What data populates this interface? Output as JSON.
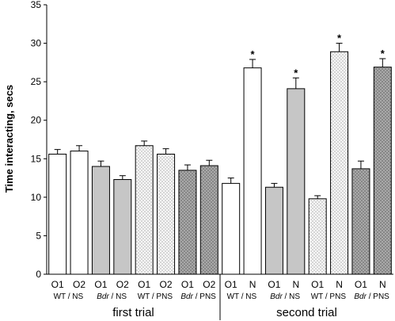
{
  "chart_data": {
    "type": "bar",
    "ylabel": "Time interacting, secs",
    "ylim": [
      0,
      35
    ],
    "yticks": [
      0,
      5,
      10,
      15,
      20,
      25,
      30,
      35
    ],
    "grid": false,
    "fills": {
      "white": "#ffffff",
      "gray": "#c6c6c6",
      "dotted_light": "#f7f7f7",
      "dotted_dark": "#a9a9a9"
    },
    "groups": [
      {
        "label": "first trial",
        "bars": [
          {
            "top": "O1",
            "bottom": "WT / NS",
            "value": 15.6,
            "error": 0.6,
            "fill": "white",
            "star": false
          },
          {
            "top": "O2",
            "bottom": "",
            "value": 16.0,
            "error": 0.7,
            "fill": "white",
            "star": false
          },
          {
            "top": "O1",
            "bottom": "Bdr / NS",
            "value": 14.0,
            "error": 0.7,
            "fill": "gray",
            "star": false
          },
          {
            "top": "O2",
            "bottom": "",
            "value": 12.3,
            "error": 0.5,
            "fill": "gray",
            "star": false
          },
          {
            "top": "O1",
            "bottom": "WT / PNS",
            "value": 16.7,
            "error": 0.6,
            "fill": "dotted_light",
            "star": false
          },
          {
            "top": "O2",
            "bottom": "",
            "value": 15.6,
            "error": 0.7,
            "fill": "dotted_light",
            "star": false
          },
          {
            "top": "O1",
            "bottom": "Bdr / PNS",
            "value": 13.5,
            "error": 0.7,
            "fill": "dotted_dark",
            "star": false
          },
          {
            "top": "O2",
            "bottom": "",
            "value": 14.1,
            "error": 0.7,
            "fill": "dotted_dark",
            "star": false
          }
        ]
      },
      {
        "label": "second trial",
        "bars": [
          {
            "top": "O1",
            "bottom": "WT / NS",
            "value": 11.8,
            "error": 0.7,
            "fill": "white",
            "star": false
          },
          {
            "top": "N",
            "bottom": "",
            "value": 26.8,
            "error": 1.1,
            "fill": "white",
            "star": true
          },
          {
            "top": "O1",
            "bottom": "Bdr / NS",
            "value": 11.3,
            "error": 0.5,
            "fill": "gray",
            "star": false
          },
          {
            "top": "N",
            "bottom": "",
            "value": 24.1,
            "error": 1.4,
            "fill": "gray",
            "star": true
          },
          {
            "top": "O1",
            "bottom": "WT / PNS",
            "value": 9.8,
            "error": 0.4,
            "fill": "dotted_light",
            "star": false
          },
          {
            "top": "N",
            "bottom": "",
            "value": 28.9,
            "error": 1.1,
            "fill": "dotted_light",
            "star": true
          },
          {
            "top": "O1",
            "bottom": "Bdr / PNS",
            "value": 13.7,
            "error": 1.0,
            "fill": "dotted_dark",
            "star": false
          },
          {
            "top": "N",
            "bottom": "",
            "value": 26.9,
            "error": 1.1,
            "fill": "dotted_dark",
            "star": true
          }
        ]
      }
    ],
    "star_symbol": "*"
  }
}
